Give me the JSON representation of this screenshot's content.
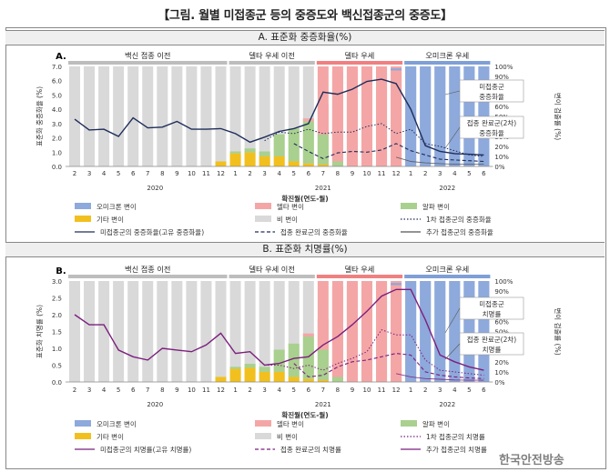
{
  "title": "【그림. 월별 미접종군 등의 중증도와 백신접종군의 중증도】",
  "watermark": "한국안전방송",
  "months": [
    "2",
    "3",
    "4",
    "5",
    "6",
    "7",
    "8",
    "9",
    "10",
    "11",
    "12",
    "1",
    "2",
    "3",
    "4",
    "5",
    "6",
    "7",
    "8",
    "9",
    "10",
    "11",
    "12",
    "1",
    "2",
    "3",
    "4",
    "5",
    "6"
  ],
  "years": [
    {
      "label": "2020",
      "at": 5.5
    },
    {
      "label": "2021",
      "at": 17
    },
    {
      "label": "2022",
      "at": 25.5
    }
  ],
  "periods": [
    {
      "label": "백신 접종 이전",
      "from": 0,
      "to": 10,
      "color": "#d9d9d9"
    },
    {
      "label": "델타 우세 이전",
      "from": 11,
      "to": 16,
      "color": "#d9d9d9"
    },
    {
      "label": "델타 우세",
      "from": 17,
      "to": 22,
      "color": "#f4a6a6"
    },
    {
      "label": "오미크론 우세",
      "from": 23,
      "to": 28,
      "color": "#a9c1e6"
    }
  ],
  "right_axis_ticks": [
    "0%",
    "10%",
    "20%",
    "30%",
    "40%",
    "50%",
    "60%",
    "70%",
    "80%",
    "90%",
    "100%"
  ],
  "x_label": "확진월(연도-월)",
  "legend": {
    "omicron": "오미크론 변이",
    "delta": "델타 변이",
    "alpha": "알파 변이",
    "other": "기타 변이",
    "non": "비 변이"
  },
  "chart_data": [
    {
      "type": "bar",
      "section_title": "A. 표준화 중증화율(%)",
      "panel_label": "A.",
      "ylabel": "표준화 중증화율 (%)",
      "y2label": "변이 검출률 (%)",
      "ylim": [
        0,
        7
      ],
      "y_ticks": [
        "0.0",
        "1.0",
        "2.0",
        "3.0",
        "4.0",
        "5.0",
        "6.0",
        "7.0"
      ],
      "variant_share_percent": {
        "omicron": [
          0,
          0,
          0,
          0,
          0,
          0,
          0,
          0,
          0,
          0,
          0,
          0,
          0,
          0,
          0,
          0,
          0,
          0,
          0,
          0,
          0,
          0,
          2,
          100,
          100,
          100,
          100,
          100,
          100
        ],
        "delta": [
          0,
          0,
          0,
          0,
          0,
          0,
          0,
          0,
          0,
          0,
          0,
          0,
          0,
          0,
          0,
          0,
          3,
          30,
          90,
          97,
          98,
          98,
          96,
          0,
          0,
          0,
          0,
          0,
          0
        ],
        "alpha": [
          0,
          0,
          0,
          0,
          0,
          0,
          0,
          0,
          0,
          0,
          0,
          2,
          4,
          5,
          22,
          33,
          42,
          30,
          5,
          0,
          0,
          0,
          0,
          0,
          0,
          0,
          0,
          0,
          0
        ],
        "other": [
          0,
          0,
          0,
          0,
          0,
          0,
          0,
          0,
          0,
          0,
          5,
          13,
          14,
          10,
          10,
          5,
          3,
          2,
          0,
          0,
          0,
          0,
          0,
          0,
          0,
          0,
          0,
          0,
          0
        ]
      },
      "series": [
        {
          "name": "미접종군의 중증화율(고유 중증화율)",
          "style": "solid",
          "color": "#1f2d5a",
          "values": [
            3.3,
            2.55,
            2.6,
            2.1,
            3.4,
            2.7,
            2.75,
            3.15,
            2.6,
            2.6,
            2.65,
            2.3,
            1.7,
            2.05,
            2.45,
            2.65,
            3.0,
            5.2,
            5.05,
            5.4,
            5.95,
            6.1,
            5.8,
            4.0,
            1.45,
            1.05,
            0.9,
            0.85,
            0.8
          ]
        },
        {
          "name": "1차 접종군의 중증화율",
          "style": "dotted",
          "color": "#1f2d5a",
          "values": [
            null,
            null,
            null,
            null,
            null,
            null,
            null,
            null,
            null,
            null,
            null,
            null,
            null,
            1.8,
            2.4,
            2.3,
            2.6,
            2.3,
            2.4,
            2.4,
            2.8,
            3.0,
            2.3,
            2.6,
            1.6,
            1.4,
            1.1,
            0.8,
            0.7
          ]
        },
        {
          "name": "접종 완료군의 중증화율",
          "style": "dashed",
          "color": "#1f2d5a",
          "values": [
            null,
            null,
            null,
            null,
            null,
            null,
            null,
            null,
            null,
            null,
            null,
            null,
            null,
            null,
            null,
            1.6,
            1.05,
            0.55,
            0.95,
            1.05,
            1.0,
            1.15,
            1.6,
            1.1,
            0.8,
            0.5,
            0.45,
            0.4,
            0.35
          ]
        },
        {
          "name": "추가 접종군의 중증화율",
          "style": "solid-thin",
          "color": "#555555",
          "values": [
            null,
            null,
            null,
            null,
            null,
            null,
            null,
            null,
            null,
            null,
            null,
            null,
            null,
            null,
            null,
            null,
            null,
            null,
            null,
            null,
            null,
            null,
            0.65,
            0.35,
            0.25,
            0.2,
            0.15,
            0.15,
            0.15
          ]
        }
      ],
      "annotations": [
        "미접종군\n중증화율",
        "접종 완료군(2차)\n중증화율"
      ]
    },
    {
      "type": "bar",
      "section_title": "B. 표준화 치명률(%)",
      "panel_label": "B.",
      "ylabel": "표준화 치명률 (%)",
      "y2label": "변이 검출률 (%)",
      "ylim": [
        0,
        3
      ],
      "y_ticks": [
        "0.0",
        "0.5",
        "1.0",
        "1.5",
        "2.0",
        "2.5",
        "3.0"
      ],
      "variant_share_percent": {
        "omicron": [
          0,
          0,
          0,
          0,
          0,
          0,
          0,
          0,
          0,
          0,
          0,
          0,
          0,
          0,
          0,
          0,
          0,
          0,
          0,
          0,
          0,
          0,
          2,
          100,
          100,
          100,
          100,
          100,
          100
        ],
        "delta": [
          0,
          0,
          0,
          0,
          0,
          0,
          0,
          0,
          0,
          0,
          0,
          0,
          0,
          0,
          0,
          0,
          3,
          30,
          90,
          97,
          98,
          98,
          96,
          0,
          0,
          0,
          0,
          0,
          0
        ],
        "alpha": [
          0,
          0,
          0,
          0,
          0,
          0,
          0,
          0,
          0,
          0,
          0,
          2,
          4,
          5,
          22,
          33,
          42,
          30,
          5,
          0,
          0,
          0,
          0,
          0,
          0,
          0,
          0,
          0,
          0
        ],
        "other": [
          0,
          0,
          0,
          0,
          0,
          0,
          0,
          0,
          0,
          0,
          5,
          13,
          14,
          10,
          10,
          5,
          3,
          2,
          0,
          0,
          0,
          0,
          0,
          0,
          0,
          0,
          0,
          0,
          0
        ]
      },
      "series": [
        {
          "name": "미접종군의 치명률(고유 치명률)",
          "style": "solid",
          "color": "#7b1f7d",
          "values": [
            2.0,
            1.7,
            1.7,
            0.95,
            0.75,
            0.65,
            1.0,
            0.95,
            0.9,
            1.1,
            1.45,
            0.85,
            0.9,
            0.5,
            0.55,
            0.7,
            0.75,
            1.1,
            1.35,
            1.7,
            2.1,
            2.55,
            2.75,
            2.75,
            1.85,
            0.8,
            0.6,
            0.45,
            0.35
          ]
        },
        {
          "name": "1차 접종군의 치명률",
          "style": "dotted",
          "color": "#7b1f7d",
          "values": [
            null,
            null,
            null,
            null,
            null,
            null,
            null,
            null,
            null,
            null,
            null,
            null,
            null,
            0.5,
            0.5,
            0.4,
            0.5,
            0.35,
            0.55,
            0.7,
            0.9,
            1.55,
            1.4,
            1.4,
            0.65,
            0.35,
            0.3,
            0.25,
            0.2
          ]
        },
        {
          "name": "접종 완료군의 치명률",
          "style": "dashed",
          "color": "#7b1f7d",
          "values": [
            null,
            null,
            null,
            null,
            null,
            null,
            null,
            null,
            null,
            null,
            null,
            null,
            null,
            null,
            null,
            0.55,
            0.15,
            0.2,
            0.45,
            0.6,
            0.65,
            0.75,
            0.85,
            0.8,
            0.3,
            0.2,
            0.15,
            0.12,
            0.1
          ]
        },
        {
          "name": "추가 접종군의 치명률",
          "style": "solid-thin",
          "color": "#7b1f7d",
          "values": [
            null,
            null,
            null,
            null,
            null,
            null,
            null,
            null,
            null,
            null,
            null,
            null,
            null,
            null,
            null,
            null,
            null,
            null,
            null,
            null,
            null,
            null,
            0.25,
            0.15,
            0.1,
            0.08,
            0.06,
            0.05,
            0.05
          ]
        }
      ],
      "annotations": [
        "미접종군\n치명률",
        "접종 완료군(2차)\n치명률"
      ]
    }
  ]
}
